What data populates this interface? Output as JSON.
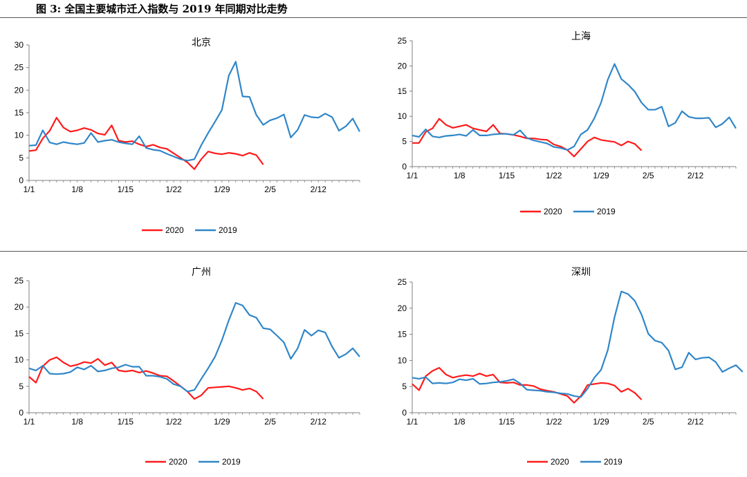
{
  "figure": {
    "title": "图 3:  全国主要城市迁入指数与 2019 年同期对比走势"
  },
  "colors": {
    "s2020": "#ff1a1a",
    "s2019": "#2f86c8",
    "axis": "#7f7f7f",
    "text": "#000000"
  },
  "chart_data": [
    {
      "type": "line",
      "title": "北京",
      "x_ticks": [
        "1/1",
        "1/8",
        "1/15",
        "1/22",
        "1/29",
        "2/5",
        "2/12"
      ],
      "ylim": [
        0,
        30
      ],
      "yticks": [
        0,
        5,
        10,
        15,
        20,
        25,
        30
      ],
      "grid": false,
      "legend": "bottom",
      "series": [
        {
          "name": "2020",
          "values": [
            6.5,
            6.7,
            9.3,
            11.0,
            13.9,
            11.7,
            10.8,
            11.1,
            11.6,
            11.2,
            10.4,
            10.1,
            12.2,
            8.8,
            8.5,
            8.7,
            8.0,
            7.5,
            7.9,
            7.3,
            7.0,
            6.0,
            5.0,
            4.0,
            2.5,
            4.7,
            6.4,
            6.0,
            5.8,
            6.1,
            5.9,
            5.5,
            6.1,
            5.6,
            3.5
          ]
        },
        {
          "name": "2019",
          "values": [
            7.7,
            7.8,
            11.1,
            8.4,
            8.0,
            8.5,
            8.2,
            8.0,
            8.3,
            10.5,
            8.5,
            8.8,
            9.0,
            8.5,
            8.2,
            8.0,
            9.8,
            7.2,
            6.8,
            6.6,
            5.9,
            5.3,
            4.7,
            4.4,
            4.7,
            7.8,
            10.5,
            13.0,
            15.6,
            23.2,
            26.3,
            18.6,
            18.5,
            14.5,
            12.3,
            13.3,
            13.8,
            14.6,
            9.5,
            11.2,
            14.5,
            14.0,
            13.9,
            14.8,
            14.0,
            11.0,
            12.0,
            13.7,
            10.8
          ]
        }
      ]
    },
    {
      "type": "line",
      "title": "上海",
      "x_ticks": [
        "1/1",
        "1/8",
        "1/15",
        "1/22",
        "1/29",
        "2/5",
        "2/12"
      ],
      "ylim": [
        0,
        25
      ],
      "yticks": [
        0,
        5,
        10,
        15,
        20,
        25
      ],
      "grid": false,
      "legend": "bottom",
      "series": [
        {
          "name": "2020",
          "values": [
            4.7,
            4.7,
            6.9,
            7.6,
            9.5,
            8.3,
            7.7,
            8.0,
            8.3,
            7.6,
            7.3,
            7.0,
            8.3,
            6.6,
            6.5,
            6.3,
            6.0,
            5.6,
            5.6,
            5.4,
            5.3,
            4.4,
            4.0,
            3.3,
            2.0,
            3.5,
            5.0,
            5.8,
            5.3,
            5.1,
            4.9,
            4.2,
            5.0,
            4.5,
            3.2
          ]
        },
        {
          "name": "2019",
          "values": [
            6.2,
            5.9,
            7.4,
            6.0,
            5.8,
            6.1,
            6.2,
            6.4,
            6.1,
            7.3,
            6.2,
            6.2,
            6.4,
            6.5,
            6.5,
            6.3,
            7.2,
            5.7,
            5.2,
            4.9,
            4.6,
            3.9,
            3.7,
            3.3,
            4.0,
            6.4,
            7.3,
            9.6,
            12.7,
            17.3,
            20.4,
            17.4,
            16.3,
            14.9,
            12.7,
            11.3,
            11.3,
            11.9,
            8.0,
            8.7,
            11.0,
            9.9,
            9.6,
            9.6,
            9.7,
            7.8,
            8.5,
            9.8,
            7.6
          ]
        }
      ]
    },
    {
      "type": "line",
      "title": "广州",
      "x_ticks": [
        "1/1",
        "1/8",
        "1/15",
        "1/22",
        "1/29",
        "2/5",
        "2/12"
      ],
      "ylim": [
        0,
        25
      ],
      "yticks": [
        0,
        5,
        10,
        15,
        20,
        25
      ],
      "grid": false,
      "legend": "bottom",
      "series": [
        {
          "name": "2020",
          "values": [
            6.8,
            5.7,
            8.8,
            10.0,
            10.5,
            9.5,
            8.8,
            9.1,
            9.6,
            9.4,
            10.2,
            9.0,
            9.5,
            8.0,
            7.8,
            8.0,
            7.6,
            7.9,
            7.5,
            7.0,
            6.9,
            6.0,
            5.0,
            4.0,
            2.6,
            3.3,
            4.7,
            4.8,
            4.9,
            5.0,
            4.7,
            4.3,
            4.6,
            4.0,
            2.6
          ]
        },
        {
          "name": "2019",
          "values": [
            8.4,
            8.0,
            8.9,
            7.4,
            7.3,
            7.4,
            7.7,
            8.6,
            8.2,
            8.9,
            7.8,
            8.0,
            8.4,
            8.6,
            9.1,
            8.7,
            8.7,
            7.0,
            7.0,
            6.8,
            6.4,
            5.4,
            5.0,
            4.0,
            4.3,
            6.4,
            8.4,
            10.6,
            13.7,
            17.5,
            20.8,
            20.3,
            18.5,
            18.0,
            16.0,
            15.8,
            14.6,
            13.3,
            10.2,
            12.2,
            15.7,
            14.6,
            15.6,
            15.2,
            12.5,
            10.4,
            11.1,
            12.2,
            10.6
          ]
        }
      ]
    },
    {
      "type": "line",
      "title": "深圳",
      "x_ticks": [
        "1/1",
        "1/8",
        "1/15",
        "1/22",
        "1/29",
        "2/5",
        "2/12"
      ],
      "ylim": [
        0,
        25
      ],
      "yticks": [
        0,
        5,
        10,
        15,
        20,
        25
      ],
      "grid": false,
      "legend": "bottom",
      "series": [
        {
          "name": "2020",
          "values": [
            5.5,
            4.3,
            7.0,
            8.0,
            8.6,
            7.3,
            6.7,
            7.0,
            7.2,
            7.0,
            7.5,
            7.0,
            7.3,
            5.8,
            5.7,
            5.8,
            5.3,
            5.3,
            5.1,
            4.5,
            4.2,
            4.0,
            3.6,
            3.2,
            1.9,
            3.2,
            5.3,
            5.5,
            5.7,
            5.6,
            5.2,
            4.0,
            4.6,
            3.8,
            2.5
          ]
        },
        {
          "name": "2019",
          "values": [
            6.7,
            6.5,
            6.8,
            5.6,
            5.7,
            5.6,
            5.8,
            6.4,
            6.2,
            6.5,
            5.5,
            5.6,
            5.8,
            5.9,
            6.1,
            6.4,
            5.6,
            4.4,
            4.3,
            4.2,
            4.0,
            3.9,
            3.7,
            3.6,
            3.2,
            3.0,
            4.6,
            6.7,
            8.2,
            12.0,
            18.3,
            23.2,
            22.7,
            21.4,
            18.8,
            15.1,
            13.8,
            13.4,
            11.9,
            8.3,
            8.7,
            11.5,
            10.2,
            10.5,
            10.6,
            9.7,
            7.8,
            8.5,
            9.1,
            7.8
          ]
        }
      ]
    }
  ]
}
